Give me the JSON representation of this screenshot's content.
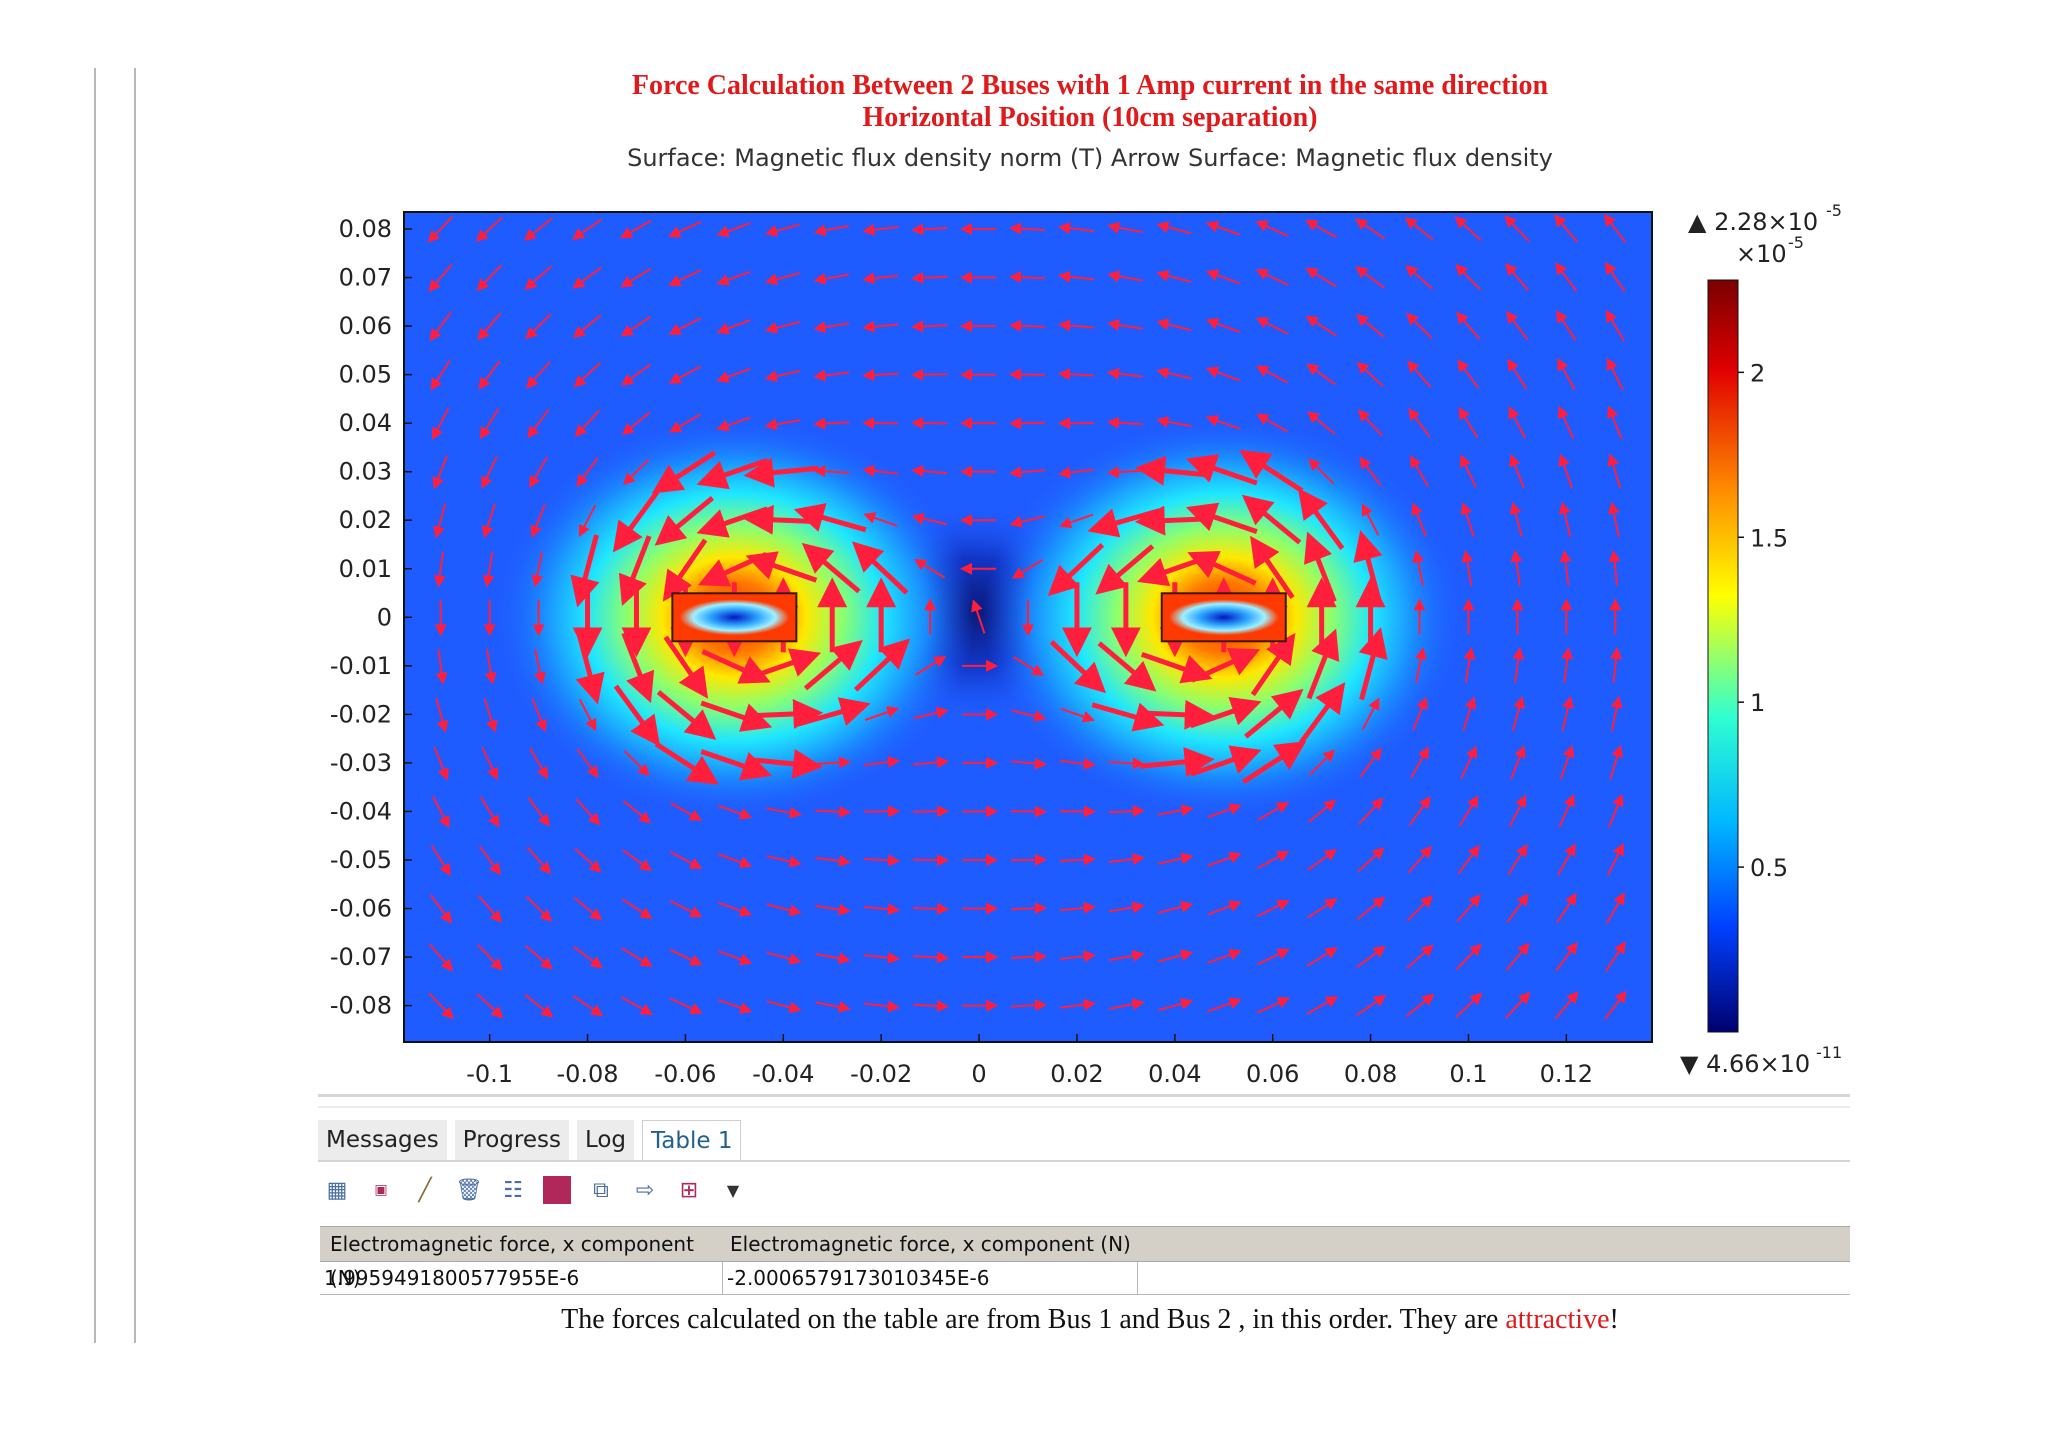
{
  "header": {
    "title_line1": "Force Calculation Between 2 Buses with 1 Amp current in the same direction",
    "title_line2": "Horizontal Position (10cm separation)"
  },
  "plot": {
    "title": "Surface: Magnetic flux density norm (T)  Arrow Surface: Magnetic flux density",
    "x_ticks": [
      "-0.1",
      "-0.08",
      "-0.06",
      "-0.04",
      "-0.02",
      "0",
      "0.02",
      "0.04",
      "0.06",
      "0.08",
      "0.1",
      "0.12"
    ],
    "y_ticks": [
      "0.08",
      "0.07",
      "0.06",
      "0.05",
      "0.04",
      "0.03",
      "0.02",
      "0.01",
      "0",
      "-0.01",
      "-0.02",
      "-0.03",
      "-0.04",
      "-0.05",
      "-0.06",
      "-0.07",
      "-0.08"
    ],
    "colorbar": {
      "max_label": "▲ 2.28×10",
      "max_exp": "-5",
      "scale_label": "×10",
      "scale_exp": "-5",
      "ticks": [
        "2",
        "1.5",
        "1",
        "0.5"
      ],
      "min_label": "▼ 4.66×10",
      "min_exp": "-11"
    },
    "colors": {
      "field_bg": "#1f5cff",
      "arrow": "#ff1f3c",
      "bus_outline": "#3a1a10"
    },
    "xlim": [
      -0.1175,
      0.1375
    ],
    "ylim": [
      -0.0875,
      0.0835
    ],
    "buses": [
      {
        "x": -0.05,
        "y": 0.0
      },
      {
        "x": 0.05,
        "y": 0.0
      }
    ]
  },
  "panel": {
    "tabs": [
      "Messages",
      "Progress",
      "Log",
      "Table 1"
    ],
    "active_tab": "Table 1",
    "toolbar_icons": [
      "table-format-icon",
      "number-format-icon",
      "clear-brush-icon",
      "delete-icon",
      "table-grid-icon",
      "color-square-icon",
      "copy-table-icon",
      "export-icon",
      "full-grid-icon",
      "dropdown-arrow-icon"
    ],
    "table": {
      "headers": [
        "Electromagnetic force, x component (N)",
        "Electromagnetic force, x component (N)"
      ],
      "rows": [
        [
          "1.9959491800577955E-6",
          "-2.0006579173010345E-6"
        ]
      ]
    }
  },
  "caption": {
    "text": "The forces calculated on the table are from Bus 1 and Bus 2 , in this order. They are ",
    "highlight": "attractive",
    "end": "!"
  }
}
